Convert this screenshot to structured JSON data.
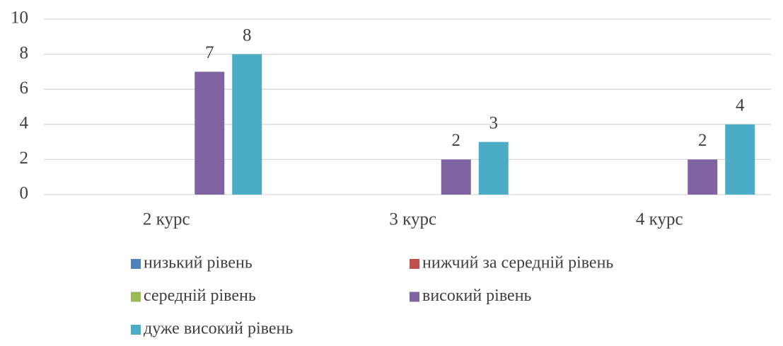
{
  "chart_data": {
    "type": "bar",
    "categories": [
      "2 курс",
      "3 курс",
      "4 курс"
    ],
    "series": [
      {
        "name": "низький рівень",
        "color": "#4f81bd",
        "values": [
          0,
          0,
          0
        ]
      },
      {
        "name": "нижчий за середній рівень",
        "color": "#c0504d",
        "values": [
          0,
          0,
          0
        ]
      },
      {
        "name": "середній рівень",
        "color": "#9bbb59",
        "values": [
          0,
          0,
          0
        ]
      },
      {
        "name": "високий рівень",
        "color": "#8064a2",
        "values": [
          7,
          2,
          2
        ]
      },
      {
        "name": "дуже високий рівень",
        "color": "#4bacc6",
        "values": [
          8,
          3,
          4
        ]
      }
    ],
    "ylim": [
      0,
      10
    ],
    "yticks": [
      0,
      2,
      4,
      6,
      8,
      10
    ],
    "grid": true,
    "legend": "bottom"
  }
}
